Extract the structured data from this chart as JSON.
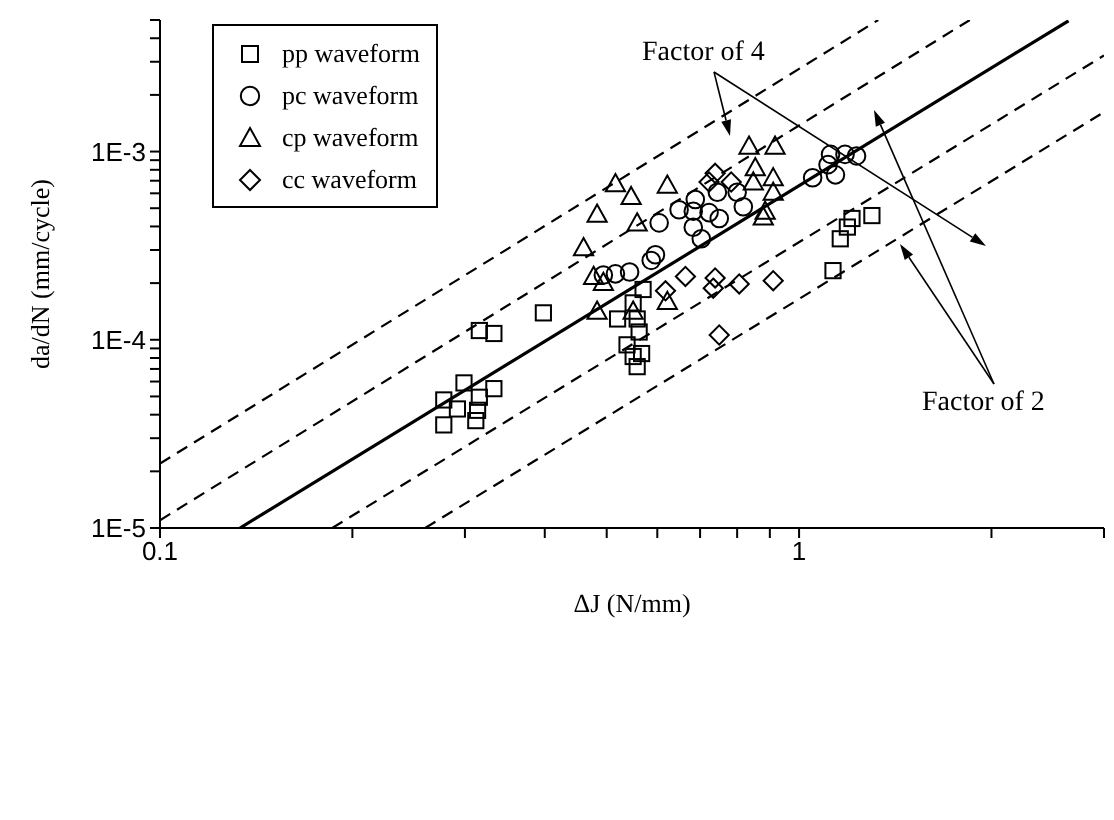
{
  "chart_data": {
    "type": "scatter",
    "xlabel": "ΔJ (N/mm)",
    "ylabel": "da/dN (mm/cycle)",
    "log": "xy",
    "legend": "top left",
    "xlim": [
      0.1,
      3
    ],
    "xticks": [
      0.1,
      {
        "value": 0.2,
        "label": null
      },
      {
        "value": 0.3,
        "label": null
      },
      {
        "value": 0.4,
        "label": null
      },
      {
        "value": 0.5,
        "label": null
      },
      {
        "value": 0.6,
        "label": null
      },
      {
        "value": 0.7,
        "label": null
      },
      {
        "value": 0.8,
        "label": null
      },
      {
        "value": 0.9,
        "label": null
      },
      1,
      {
        "value": 2,
        "label": null
      },
      {
        "value": 3,
        "label": null
      }
    ],
    "ylim": [
      1e-05,
      0.005
    ],
    "yticks": [
      {
        "value": 1e-05,
        "label": "1E-5"
      },
      {
        "value": 2e-05,
        "label": null
      },
      {
        "value": 3e-05,
        "label": null
      },
      {
        "value": 4e-05,
        "label": null
      },
      {
        "value": 5e-05,
        "label": null
      },
      {
        "value": 6e-05,
        "label": null
      },
      {
        "value": 7e-05,
        "label": null
      },
      {
        "value": 8e-05,
        "label": null
      },
      {
        "value": 9e-05,
        "label": null
      },
      {
        "value": 0.0001,
        "label": "1E-4"
      },
      {
        "value": 0.0002,
        "label": null
      },
      {
        "value": 0.0003,
        "label": null
      },
      {
        "value": 0.0004,
        "label": null
      },
      {
        "value": 0.0005,
        "label": null
      },
      {
        "value": 0.0006,
        "label": null
      },
      {
        "value": 0.0007,
        "label": null
      },
      {
        "value": 0.0008,
        "label": null
      },
      {
        "value": 0.0009,
        "label": null
      },
      {
        "value": 0.001,
        "label": "1E-3"
      },
      {
        "value": 0.002,
        "label": null
      },
      {
        "value": 0.003,
        "label": null
      },
      {
        "value": 0.004,
        "label": null
      },
      {
        "value": 0.005,
        "label": null
      }
    ],
    "annotations": [
      "Factor of 4",
      "Factor of 2"
    ],
    "series": [
      {
        "name": "pp waveform",
        "type": "scatter",
        "marker": "square",
        "color": "#000000",
        "x": [
          0.278,
          0.278,
          0.292,
          0.299,
          0.312,
          0.314,
          0.316,
          0.333,
          0.316,
          0.333,
          0.398,
          0.57,
          0.55,
          0.52,
          0.558,
          0.562,
          0.538,
          0.567,
          0.55,
          0.558,
          1.3,
          1.21,
          1.19,
          1.16,
          1.13
        ],
        "values": [
          3.53e-05,
          4.79e-05,
          4.29e-05,
          5.9e-05,
          3.72e-05,
          4.22e-05,
          4.95e-05,
          5.5e-05,
          0.000112,
          0.000108,
          0.000139,
          0.000185,
          0.000157,
          0.000129,
          0.000129,
          0.00011,
          9.4e-05,
          8.45e-05,
          8.15e-05,
          7.2e-05,
          0.000457,
          0.000441,
          0.000397,
          0.000344,
          0.000233
        ]
      },
      {
        "name": "pc waveform",
        "type": "scatter",
        "marker": "circle",
        "color": "#000000",
        "x": [
          0.604,
          0.596,
          0.587,
          0.543,
          0.516,
          0.494,
          0.649,
          0.688,
          0.683,
          0.723,
          0.75,
          0.683,
          0.703,
          0.745,
          0.8,
          0.818,
          1.05,
          1.11,
          1.14,
          1.12,
          1.18,
          1.23
        ],
        "values": [
          0.000418,
          0.000283,
          0.000264,
          0.000229,
          0.000224,
          0.000221,
          0.000491,
          0.000556,
          0.000482,
          0.000474,
          0.000441,
          0.000396,
          0.000344,
          0.000608,
          0.000608,
          0.000509,
          0.000726,
          0.000852,
          0.000752,
          0.000966,
          0.000966,
          0.000948
        ]
      },
      {
        "name": "cp waveform",
        "type": "scatter",
        "marker": "triangle",
        "color": "#000000",
        "x": [
          0.835,
          0.917,
          0.516,
          0.546,
          0.622,
          0.483,
          0.558,
          0.46,
          0.477,
          0.494,
          0.854,
          0.911,
          0.885,
          0.879,
          0.911,
          0.848,
          0.622,
          0.55,
          0.483
        ],
        "values": [
          0.00107,
          0.00107,
          0.000676,
          0.000577,
          0.000664,
          0.000465,
          0.000418,
          0.000309,
          0.000217,
          0.000202,
          0.000822,
          0.000726,
          0.000482,
          0.00045,
          0.000608,
          0.000689,
          0.00016,
          0.000142,
          0.000142
        ]
      },
      {
        "name": "cc waveform",
        "type": "scatter",
        "marker": "diamond",
        "color": "#000000",
        "x": [
          0.739,
          0.723,
          0.783,
          0.664,
          0.739,
          0.734,
          0.806,
          0.911,
          0.618,
          0.75
        ],
        "values": [
          0.000766,
          0.000689,
          0.000689,
          0.000217,
          0.000213,
          0.000188,
          0.000198,
          0.000206,
          0.000182,
          0.000106
        ]
      },
      {
        "type": "line",
        "marker": "none",
        "line_style": "solid",
        "color": "#000000",
        "x": [
          0.1334,
          2.64
        ],
        "values": [
          1e-05,
          0.00495
        ]
      },
      {
        "type": "line",
        "marker": "none",
        "line_style": "dashed",
        "color": "#000000",
        "x": [
          0.1,
          1.33
        ],
        "values": [
          2.2e-05,
          0.005
        ]
      },
      {
        "type": "line",
        "marker": "none",
        "line_style": "dashed",
        "color": "#000000",
        "x": [
          0.1,
          1.85
        ],
        "values": [
          1.1e-05,
          0.005
        ]
      },
      {
        "type": "line",
        "marker": "none",
        "line_style": "dashed",
        "color": "#000000",
        "x": [
          0.186,
          3
        ],
        "values": [
          1e-05,
          0.00324
        ]
      },
      {
        "type": "line",
        "marker": "none",
        "line_style": "dashed",
        "color": "#000000",
        "x": [
          0.26,
          3
        ],
        "values": [
          1e-05,
          0.00162
        ]
      }
    ]
  }
}
